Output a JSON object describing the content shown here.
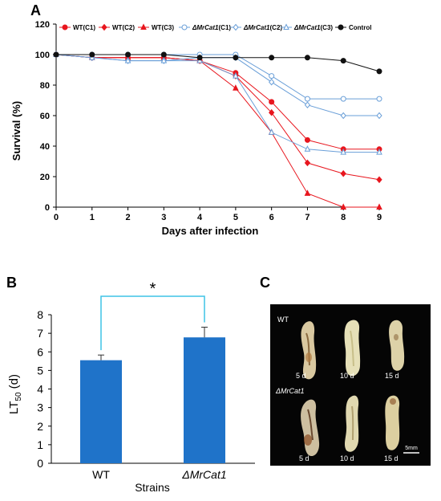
{
  "panels": {
    "a": "A",
    "b": "B",
    "c": "C"
  },
  "chart_data": [
    {
      "type": "line",
      "xlabel": "Days after infection",
      "ylabel": "Survival (%)",
      "xlim": [
        0,
        9
      ],
      "ylim": [
        0,
        120
      ],
      "x": [
        0,
        1,
        2,
        3,
        4,
        5,
        6,
        7,
        8,
        9
      ],
      "yticks": [
        0,
        20,
        40,
        60,
        80,
        100,
        120
      ],
      "grid": false,
      "legend": "top",
      "series": [
        {
          "name": "WT(C1)",
          "color": "#e8161e",
          "marker": "filled-circle",
          "values": [
            100,
            98,
            98,
            98,
            96,
            88,
            69,
            44,
            38,
            38
          ]
        },
        {
          "name": "WT(C2)",
          "color": "#e8161e",
          "marker": "filled-diamond",
          "values": [
            100,
            98,
            98,
            98,
            96,
            86,
            62,
            29,
            22,
            18
          ]
        },
        {
          "name": "WT(C3)",
          "color": "#e8161e",
          "marker": "filled-triangle",
          "values": [
            100,
            98,
            98,
            98,
            96,
            78,
            49,
            9,
            0,
            0
          ]
        },
        {
          "name": "ΔMrCat1(C1)",
          "color": "#6a9fd8",
          "marker": "open-circle",
          "values": [
            100,
            100,
            100,
            100,
            100,
            100,
            86,
            71,
            71,
            71
          ]
        },
        {
          "name": "ΔMrCat1(C2)",
          "color": "#6a9fd8",
          "marker": "open-diamond",
          "values": [
            100,
            98,
            96,
            96,
            98,
            98,
            82,
            67,
            60,
            60
          ]
        },
        {
          "name": "ΔMrCat1(C3)",
          "color": "#6a9fd8",
          "marker": "open-triangle",
          "values": [
            100,
            98,
            96,
            96,
            96,
            86,
            49,
            38,
            36,
            36
          ]
        },
        {
          "name": "Control",
          "color": "#111111",
          "marker": "filled-circle",
          "values": [
            100,
            100,
            100,
            100,
            98,
            98,
            98,
            98,
            96,
            89
          ]
        }
      ]
    },
    {
      "type": "bar",
      "categories": [
        "WT",
        "ΔMrCat1"
      ],
      "values": [
        5.55,
        6.78
      ],
      "errors": [
        0.28,
        0.55
      ],
      "xlabel": "Strains",
      "ylabel": "LT",
      "ylabel_sub": "50",
      "ylabel_unit": " (d)",
      "ylim": [
        0,
        8
      ],
      "yticks": [
        0,
        1,
        2,
        3,
        4,
        5,
        6,
        7,
        8
      ],
      "bar_color": "#1f73c9",
      "significance": "*",
      "bracket_color": "#3fc3e6"
    }
  ],
  "photo": {
    "genotypes": [
      "WT",
      "ΔMrCat1"
    ],
    "days": [
      "5 d",
      "10 d",
      "15 d"
    ],
    "scale": "5mm"
  }
}
